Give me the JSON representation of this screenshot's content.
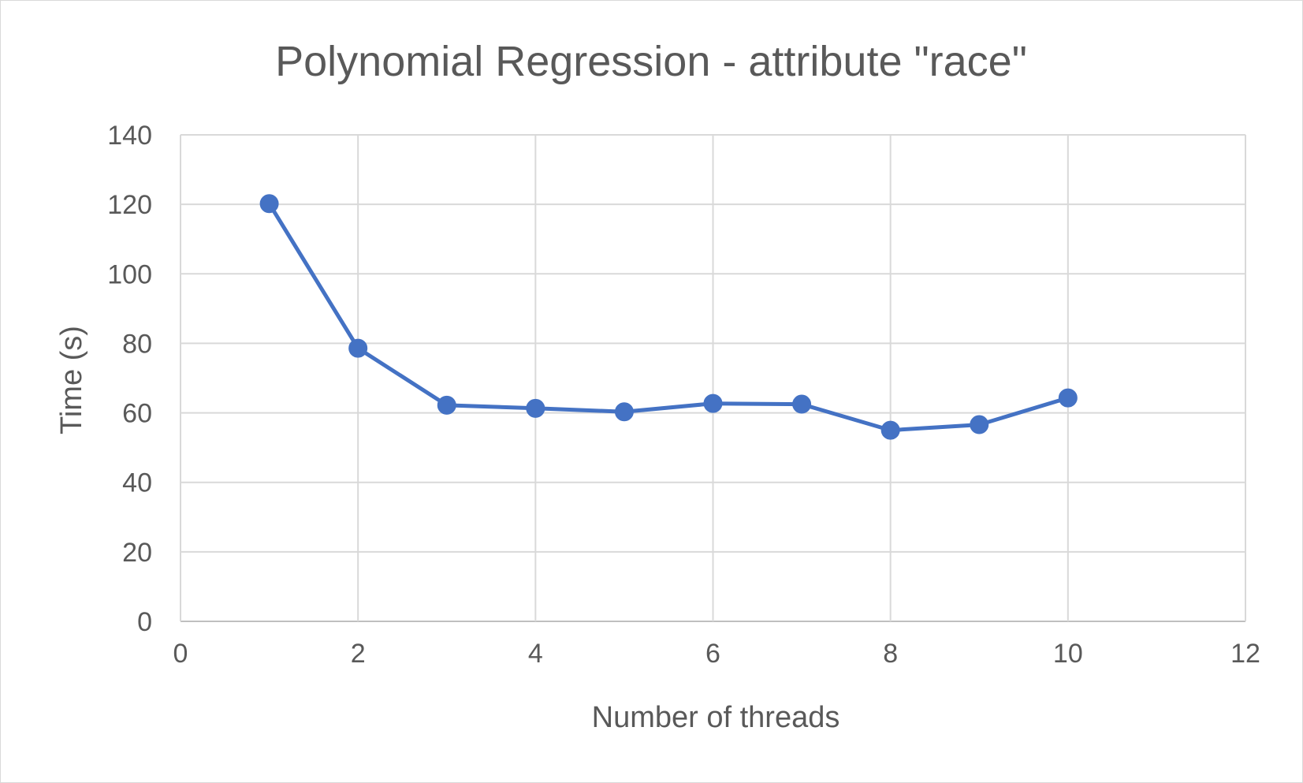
{
  "chart_data": {
    "type": "scatter",
    "title": "Polynomial Regression - attribute \"race\"",
    "xlabel": "Number of threads",
    "ylabel": "Time (s)",
    "xlim": [
      0,
      12
    ],
    "ylim": [
      0,
      140
    ],
    "x_ticks": [
      "0",
      "2",
      "4",
      "6",
      "8",
      "10",
      "12"
    ],
    "y_ticks": [
      "0",
      "20",
      "40",
      "60",
      "80",
      "100",
      "120",
      "140"
    ],
    "grid": true,
    "legend": "none",
    "markers": true,
    "lines": true,
    "series_color": "#4472c4",
    "series": [
      {
        "x": [
          1,
          2,
          3,
          4,
          5,
          6,
          7,
          8,
          9,
          10
        ],
        "y": [
          120.2,
          78.6,
          62.2,
          61.3,
          60.3,
          62.7,
          62.5,
          55.0,
          56.6,
          64.3
        ]
      }
    ]
  }
}
